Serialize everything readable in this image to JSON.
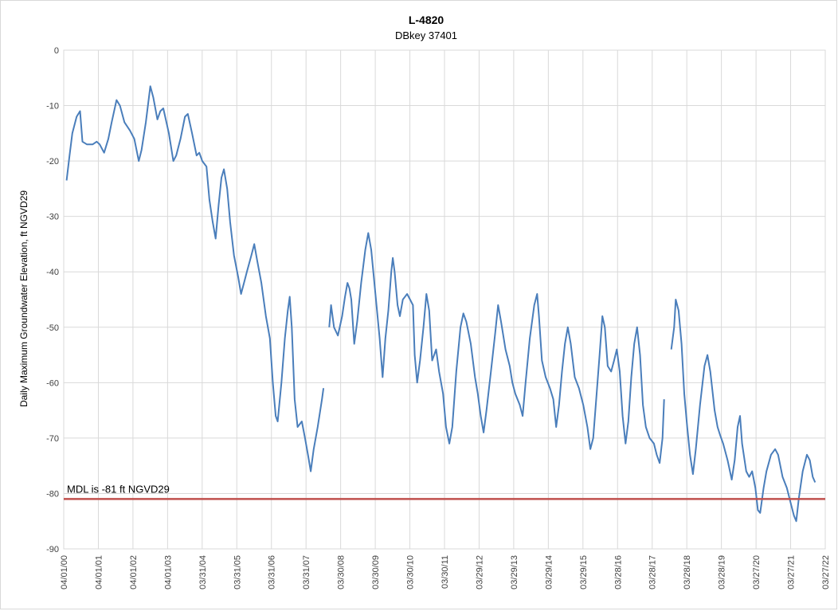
{
  "chart_data": {
    "type": "line",
    "title": "L-4820",
    "subtitle": "DBkey 37401",
    "xlabel": "",
    "ylabel": "Daily Maximum Groundwater Elevation, ft NGVD29",
    "ylim": [
      -90,
      0
    ],
    "yticks": [
      0,
      -10,
      -20,
      -30,
      -40,
      -50,
      -60,
      -70,
      -80,
      -90
    ],
    "xlim": [
      "2000-04-01",
      "2022-03-27"
    ],
    "xticks": [
      {
        "label": "04/01/00",
        "date": "2000-04-01"
      },
      {
        "label": "04/01/01",
        "date": "2001-04-01"
      },
      {
        "label": "04/01/02",
        "date": "2002-04-01"
      },
      {
        "label": "04/01/03",
        "date": "2003-04-01"
      },
      {
        "label": "03/31/04",
        "date": "2004-03-31"
      },
      {
        "label": "03/31/05",
        "date": "2005-03-31"
      },
      {
        "label": "03/31/06",
        "date": "2006-03-31"
      },
      {
        "label": "03/31/07",
        "date": "2007-03-31"
      },
      {
        "label": "03/30/08",
        "date": "2008-03-30"
      },
      {
        "label": "03/30/09",
        "date": "2009-03-30"
      },
      {
        "label": "03/30/10",
        "date": "2010-03-30"
      },
      {
        "label": "03/30/11",
        "date": "2011-03-30"
      },
      {
        "label": "03/29/12",
        "date": "2012-03-29"
      },
      {
        "label": "03/29/13",
        "date": "2013-03-29"
      },
      {
        "label": "03/29/14",
        "date": "2014-03-29"
      },
      {
        "label": "03/29/15",
        "date": "2015-03-29"
      },
      {
        "label": "03/28/16",
        "date": "2016-03-28"
      },
      {
        "label": "03/28/17",
        "date": "2017-03-28"
      },
      {
        "label": "03/28/18",
        "date": "2018-03-28"
      },
      {
        "label": "03/28/19",
        "date": "2019-03-28"
      },
      {
        "label": "03/27/20",
        "date": "2020-03-27"
      },
      {
        "label": "03/27/21",
        "date": "2021-03-27"
      },
      {
        "label": "03/27/22",
        "date": "2022-03-27"
      }
    ],
    "grid": true,
    "series": [
      {
        "color": "#4a7ebb",
        "segments": [
          [
            [
              "2000-05-01",
              -23.5
            ],
            [
              "2000-06-01",
              -19
            ],
            [
              "2000-07-01",
              -15
            ],
            [
              "2000-08-15",
              -12
            ],
            [
              "2000-09-20",
              -11
            ],
            [
              "2000-10-15",
              -16.5
            ],
            [
              "2000-12-01",
              -17
            ],
            [
              "2001-02-01",
              -17
            ],
            [
              "2001-03-15",
              -16.5
            ],
            [
              "2001-04-15",
              -17
            ],
            [
              "2001-06-01",
              -18.5
            ],
            [
              "2001-07-15",
              -16
            ],
            [
              "2001-08-20",
              -13
            ],
            [
              "2001-10-10",
              -9
            ],
            [
              "2001-11-15",
              -10
            ],
            [
              "2002-01-01",
              -13
            ],
            [
              "2002-03-01",
              -14.5
            ],
            [
              "2002-04-15",
              -16
            ],
            [
              "2002-06-01",
              -20
            ],
            [
              "2002-07-01",
              -18
            ],
            [
              "2002-08-15",
              -13
            ],
            [
              "2002-10-01",
              -6.5
            ],
            [
              "2002-11-01",
              -8.5
            ],
            [
              "2002-12-15",
              -12.5
            ],
            [
              "2003-01-15",
              -11
            ],
            [
              "2003-02-15",
              -10.5
            ],
            [
              "2003-04-15",
              -15
            ],
            [
              "2003-06-01",
              -20
            ],
            [
              "2003-07-01",
              -19
            ],
            [
              "2003-08-15",
              -16
            ],
            [
              "2003-10-01",
              -12
            ],
            [
              "2003-11-01",
              -11.5
            ],
            [
              "2003-12-15",
              -15
            ],
            [
              "2004-02-01",
              -19
            ],
            [
              "2004-03-01",
              -18.5
            ],
            [
              "2004-04-01",
              -20
            ],
            [
              "2004-05-15",
              -21
            ],
            [
              "2004-06-15",
              -27
            ],
            [
              "2004-07-20",
              -31
            ],
            [
              "2004-08-20",
              -34
            ],
            [
              "2004-09-20",
              -28
            ],
            [
              "2004-10-20",
              -23
            ],
            [
              "2004-11-15",
              -21.5
            ],
            [
              "2004-12-20",
              -25
            ],
            [
              "2005-01-20",
              -31
            ],
            [
              "2005-03-01",
              -37
            ],
            [
              "2005-04-15",
              -41
            ],
            [
              "2005-05-15",
              -44
            ],
            [
              "2005-06-15",
              -42
            ],
            [
              "2005-07-15",
              -40
            ],
            [
              "2005-09-01",
              -37
            ],
            [
              "2005-10-01",
              -35
            ],
            [
              "2005-11-01",
              -38
            ],
            [
              "2005-12-15",
              -42
            ],
            [
              "2006-02-01",
              -48
            ],
            [
              "2006-03-15",
              -52
            ],
            [
              "2006-04-15",
              -60
            ],
            [
              "2006-05-15",
              -66
            ],
            [
              "2006-06-05",
              -67
            ],
            [
              "2006-07-15",
              -60
            ],
            [
              "2006-08-20",
              -52
            ],
            [
              "2006-09-20",
              -47
            ],
            [
              "2006-10-10",
              -44.5
            ],
            [
              "2006-11-01",
              -50
            ],
            [
              "2006-12-01",
              -63
            ],
            [
              "2007-01-01",
              -68
            ],
            [
              "2007-02-15",
              -67
            ],
            [
              "2007-03-20",
              -70
            ],
            [
              "2007-04-20",
              -73
            ],
            [
              "2007-05-20",
              -76
            ],
            [
              "2007-06-20",
              -72
            ],
            [
              "2007-08-01",
              -68
            ],
            [
              "2007-09-15",
              -63
            ],
            [
              "2007-10-01",
              -61
            ]
          ],
          [
            [
              "2007-12-01",
              -50
            ],
            [
              "2007-12-20",
              -46
            ],
            [
              "2008-01-20",
              -50
            ],
            [
              "2008-03-01",
              -51.5
            ],
            [
              "2008-04-15",
              -48
            ],
            [
              "2008-05-15",
              -44.5
            ],
            [
              "2008-06-10",
              -42
            ],
            [
              "2008-07-01",
              -43
            ],
            [
              "2008-07-20",
              -45
            ],
            [
              "2008-08-20",
              -53
            ],
            [
              "2008-09-20",
              -49
            ],
            [
              "2008-11-01",
              -42
            ],
            [
              "2008-12-15",
              -36
            ],
            [
              "2009-01-15",
              -33
            ],
            [
              "2009-02-15",
              -36
            ],
            [
              "2009-04-01",
              -44
            ],
            [
              "2009-05-15",
              -52
            ],
            [
              "2009-06-15",
              -59
            ],
            [
              "2009-07-15",
              -52
            ],
            [
              "2009-08-15",
              -47
            ],
            [
              "2009-09-15",
              -40
            ],
            [
              "2009-10-01",
              -37.5
            ],
            [
              "2009-10-20",
              -40
            ],
            [
              "2009-11-20",
              -46
            ],
            [
              "2009-12-15",
              -48
            ],
            [
              "2010-01-15",
              -45
            ],
            [
              "2010-03-01",
              -44
            ],
            [
              "2010-04-01",
              -45
            ],
            [
              "2010-05-01",
              -46
            ],
            [
              "2010-05-20",
              -55
            ],
            [
              "2010-06-15",
              -60
            ],
            [
              "2010-07-15",
              -56
            ],
            [
              "2010-08-20",
              -50
            ],
            [
              "2010-09-20",
              -44
            ],
            [
              "2010-10-20",
              -47
            ],
            [
              "2010-11-20",
              -56
            ],
            [
              "2011-01-01",
              -54
            ],
            [
              "2011-02-01",
              -58
            ],
            [
              "2011-03-15",
              -62
            ],
            [
              "2011-04-15",
              -68
            ],
            [
              "2011-05-20",
              -71
            ],
            [
              "2011-06-20",
              -68
            ],
            [
              "2011-08-01",
              -58
            ],
            [
              "2011-09-15",
              -50
            ],
            [
              "2011-10-15",
              -47.5
            ],
            [
              "2011-11-15",
              -49
            ],
            [
              "2012-01-01",
              -53
            ],
            [
              "2012-02-15",
              -59
            ],
            [
              "2012-03-15",
              -62
            ],
            [
              "2012-04-15",
              -66
            ],
            [
              "2012-05-15",
              -69
            ],
            [
              "2012-06-15",
              -65
            ],
            [
              "2012-08-01",
              -58
            ],
            [
              "2012-09-15",
              -51
            ],
            [
              "2012-10-15",
              -46
            ],
            [
              "2012-11-15",
              -49
            ],
            [
              "2013-01-01",
              -54
            ],
            [
              "2013-02-15",
              -57
            ],
            [
              "2013-03-15",
              -60
            ],
            [
              "2013-04-15",
              -62
            ],
            [
              "2013-06-01",
              -64
            ],
            [
              "2013-07-01",
              -66
            ],
            [
              "2013-08-01",
              -60
            ],
            [
              "2013-09-15",
              -52
            ],
            [
              "2013-11-01",
              -46
            ],
            [
              "2013-12-01",
              -44
            ],
            [
              "2013-12-20",
              -48
            ],
            [
              "2014-01-20",
              -56
            ],
            [
              "2014-03-01",
              -59
            ],
            [
              "2014-04-15",
              -61
            ],
            [
              "2014-05-20",
              -63
            ],
            [
              "2014-06-20",
              -68
            ],
            [
              "2014-07-20",
              -64
            ],
            [
              "2014-08-20",
              -58
            ],
            [
              "2014-09-20",
              -53
            ],
            [
              "2014-10-20",
              -50
            ],
            [
              "2014-11-20",
              -53
            ],
            [
              "2015-01-01",
              -59
            ],
            [
              "2015-02-15",
              -61
            ],
            [
              "2015-04-01",
              -64
            ],
            [
              "2015-05-15",
              -68
            ],
            [
              "2015-06-15",
              -72
            ],
            [
              "2015-07-15",
              -70
            ],
            [
              "2015-08-20",
              -62
            ],
            [
              "2015-09-20",
              -55
            ],
            [
              "2015-10-20",
              -48
            ],
            [
              "2015-11-15",
              -50
            ],
            [
              "2015-12-15",
              -57
            ],
            [
              "2016-01-20",
              -58
            ],
            [
              "2016-02-20",
              -56
            ],
            [
              "2016-03-20",
              -54
            ],
            [
              "2016-04-20",
              -58
            ],
            [
              "2016-05-20",
              -66
            ],
            [
              "2016-06-20",
              -71
            ],
            [
              "2016-07-20",
              -67
            ],
            [
              "2016-08-20",
              -59
            ],
            [
              "2016-09-20",
              -53
            ],
            [
              "2016-10-20",
              -50
            ],
            [
              "2016-11-20",
              -55
            ],
            [
              "2016-12-20",
              -64
            ],
            [
              "2017-01-20",
              -68
            ],
            [
              "2017-03-01",
              -70
            ],
            [
              "2017-04-15",
              -71
            ],
            [
              "2017-05-15",
              -73
            ],
            [
              "2017-06-15",
              -74.5
            ],
            [
              "2017-07-15",
              -70
            ],
            [
              "2017-08-01",
              -63
            ]
          ],
          [
            [
              "2017-10-15",
              -54
            ],
            [
              "2017-11-15",
              -50
            ],
            [
              "2017-12-01",
              -45
            ],
            [
              "2018-01-01",
              -47
            ],
            [
              "2018-02-01",
              -53
            ],
            [
              "2018-03-01",
              -62
            ],
            [
              "2018-04-01",
              -68
            ],
            [
              "2018-05-01",
              -73
            ],
            [
              "2018-06-01",
              -76.5
            ],
            [
              "2018-07-01",
              -72
            ],
            [
              "2018-08-15",
              -64
            ],
            [
              "2018-10-01",
              -57
            ],
            [
              "2018-11-01",
              -55
            ],
            [
              "2018-12-01",
              -58
            ],
            [
              "2019-01-15",
              -65
            ],
            [
              "2019-02-15",
              -68
            ],
            [
              "2019-03-15",
              -69.5
            ],
            [
              "2019-04-15",
              -71
            ],
            [
              "2019-06-01",
              -74
            ],
            [
              "2019-07-15",
              -77.5
            ],
            [
              "2019-08-15",
              -74
            ],
            [
              "2019-09-15",
              -68
            ],
            [
              "2019-10-10",
              -66
            ],
            [
              "2019-11-01",
              -71
            ],
            [
              "2019-12-15",
              -76
            ],
            [
              "2020-01-15",
              -77
            ],
            [
              "2020-02-15",
              -76
            ],
            [
              "2020-03-20",
              -79
            ],
            [
              "2020-04-15",
              -83
            ],
            [
              "2020-05-10",
              -83.5
            ],
            [
              "2020-06-15",
              -79
            ],
            [
              "2020-07-15",
              -76
            ],
            [
              "2020-09-01",
              -73
            ],
            [
              "2020-10-15",
              -72
            ],
            [
              "2020-11-15",
              -73
            ],
            [
              "2021-01-01",
              -77
            ],
            [
              "2021-02-15",
              -79
            ],
            [
              "2021-04-01",
              -82
            ],
            [
              "2021-05-01",
              -84
            ],
            [
              "2021-05-25",
              -85
            ],
            [
              "2021-06-20",
              -81
            ],
            [
              "2021-08-01",
              -76
            ],
            [
              "2021-09-15",
              -73
            ],
            [
              "2021-10-15",
              -74
            ],
            [
              "2021-11-15",
              -77
            ],
            [
              "2021-12-10",
              -78
            ]
          ]
        ]
      }
    ],
    "reference_line": {
      "y": -81,
      "color": "#c0504d",
      "label": "MDL is -81 ft NGVD29"
    }
  }
}
